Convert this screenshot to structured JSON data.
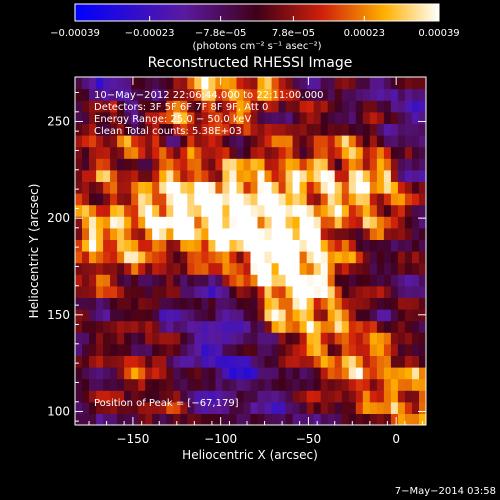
{
  "chart_data": {
    "type": "heatmap",
    "title": "Reconstructed RHESSI Image",
    "xlabel": "Heliocentric X (arcsec)",
    "ylabel": "Heliocentric Y (arcsec)",
    "xlim": [
      -183,
      17
    ],
    "ylim": [
      93,
      273
    ],
    "x_ticks": [
      -150,
      -100,
      -50,
      0
    ],
    "x_tick_labels": [
      "−150",
      "−100",
      "−50",
      "0"
    ],
    "y_ticks": [
      100,
      150,
      200,
      250
    ],
    "y_tick_labels": [
      "100",
      "150",
      "200",
      "250"
    ],
    "colorbar": {
      "range": [
        -0.00039,
        0.00039
      ],
      "ticks": [
        -0.00039,
        -0.00023,
        -7.8e-05,
        7.8e-05,
        0.00023,
        0.00039
      ],
      "tick_labels": [
        "−0.00039",
        "−0.00023",
        "−7.8e−05",
        "7.8e−05",
        "0.00023",
        "0.00039"
      ],
      "unit_label": "(photons cm⁻² s⁻¹ asec⁻²)"
    },
    "annotations": [
      "10−May−2012 22:06:44.000 to 22:11:00.000",
      "Detectors: 3F 5F 6F 7F 8F 9F, Att 0",
      "Energy Range: 25.0 − 50.0 keV",
      "Clean     Total counts: 5.38E+03"
    ],
    "peak_label": "Position of Peak = [−67,179]",
    "peak": [
      -67,
      179
    ],
    "footer": "7−May−2014 03:58",
    "grid": false,
    "colormap": "blue-purple-red-yellow-white",
    "intensity_features": [
      {
        "kind": "ridge",
        "from": [
          -170,
          190
        ],
        "to": [
          -20,
          225
        ],
        "width": 18,
        "amp": 1.0
      },
      {
        "kind": "ridge",
        "from": [
          -120,
          208
        ],
        "to": [
          -50,
          178
        ],
        "width": 14,
        "amp": 0.8
      },
      {
        "kind": "ridge",
        "from": [
          -165,
          240
        ],
        "to": [
          -80,
          272
        ],
        "width": 14,
        "amp": 0.85
      },
      {
        "kind": "blob",
        "at": [
          -67,
          179
        ],
        "width": 20,
        "amp": 0.9
      },
      {
        "kind": "ridge",
        "from": [
          -55,
          150
        ],
        "to": [
          15,
          100
        ],
        "width": 16,
        "amp": 0.9
      },
      {
        "kind": "blob",
        "at": [
          -140,
          120
        ],
        "width": 20,
        "amp": 0.55
      },
      {
        "kind": "blob",
        "at": [
          -10,
          210
        ],
        "width": 15,
        "amp": 0.55
      },
      {
        "kind": "cool",
        "at": [
          -150,
          255
        ],
        "width": 18,
        "amp": 0.7
      },
      {
        "kind": "cool",
        "at": [
          -100,
          135
        ],
        "width": 25,
        "amp": 0.6
      },
      {
        "kind": "cool",
        "at": [
          5,
          240
        ],
        "width": 20,
        "amp": 0.5
      }
    ]
  }
}
